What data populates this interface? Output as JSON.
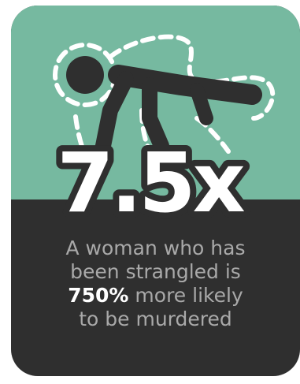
{
  "colors": {
    "top_panel": "#76b9a0",
    "bottom_panel": "#2f2f2f",
    "figure": "#2f2f2f",
    "outline_dash": "#ffffff",
    "stat_fill": "#ffffff",
    "stat_outline": "#2f2f2f",
    "body_text": "#a9a9a9",
    "highlight_text": "#ffffff"
  },
  "illustration": {
    "icon": "fallen-person-chalk-outline-icon"
  },
  "stat": {
    "value": "7.5x"
  },
  "description": {
    "line1": "A woman who has",
    "line2": "been strangled is",
    "highlight": "750%",
    "line3_rest": " more likely",
    "line4": "to be murdered"
  }
}
